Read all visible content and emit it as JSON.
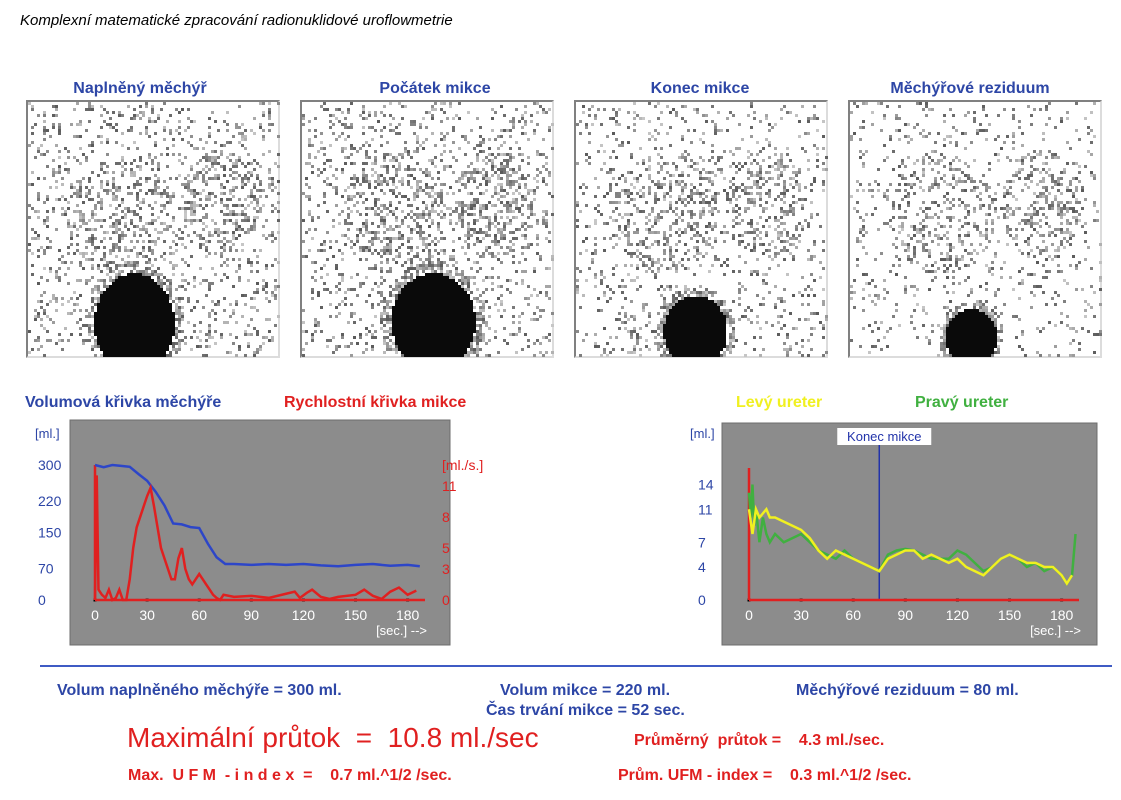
{
  "title": "Komplexní matematické zpracování radionuklidové uroflowmetrie",
  "scans": [
    {
      "label": "Naplněný měchýř"
    },
    {
      "label": "Počátek mikce"
    },
    {
      "label": "Konec mikce"
    },
    {
      "label": "Měchýřové reziduum"
    }
  ],
  "legend": {
    "volume": "Volumová křivka měchýře",
    "rate": "Rychlostní křivka mikce",
    "left_ureter": "Levý  ureter",
    "right_ureter": "Pravý ureter"
  },
  "chart_data": [
    {
      "type": "line",
      "title": "",
      "xlabel": "[sec.] -->",
      "ylabel_left": "[ml.]",
      "ylabel_right": "[ml./s.]",
      "x_ticks": [
        "0",
        "30",
        "60",
        "90",
        "120",
        "150",
        "180"
      ],
      "y_left_ticks": [
        "300",
        "220",
        "150",
        "70",
        "0"
      ],
      "y_right_ticks": [
        "[ml./s.]",
        "11",
        "8",
        "5",
        "3",
        "0"
      ],
      "xlim": [
        0,
        190
      ],
      "ylim_left": [
        0,
        300
      ],
      "ylim_right": [
        0,
        13
      ],
      "colors": {
        "volume": "#2d46c8",
        "rate": "#e02020",
        "plot_bg": "#8c8c8c"
      },
      "series": [
        {
          "name": "Volumová křivka měchýře",
          "axis": "left",
          "x": [
            0,
            5,
            10,
            15,
            20,
            25,
            30,
            35,
            40,
            45,
            50,
            55,
            60,
            65,
            70,
            75,
            80,
            90,
            100,
            110,
            120,
            130,
            140,
            150,
            160,
            170,
            180,
            187
          ],
          "y": [
            300,
            295,
            300,
            298,
            296,
            280,
            265,
            240,
            210,
            170,
            168,
            162,
            160,
            125,
            95,
            80,
            80,
            78,
            80,
            78,
            80,
            77,
            75,
            78,
            80,
            76,
            78,
            75
          ]
        },
        {
          "name": "Rychlostní křivka mikce",
          "axis": "right",
          "x": [
            0,
            1,
            2,
            4,
            6,
            8,
            10,
            12,
            14,
            16,
            18,
            20,
            22,
            24,
            26,
            28,
            30,
            32,
            34,
            36,
            38,
            40,
            42,
            44,
            46,
            48,
            50,
            52,
            54,
            56,
            58,
            60,
            62,
            64,
            66,
            68,
            70,
            72,
            74,
            80,
            90,
            100,
            110,
            115,
            118,
            122,
            125,
            130,
            135,
            140,
            150,
            155,
            160,
            165,
            170,
            175,
            180,
            185
          ],
          "y": [
            0,
            12,
            1,
            0.5,
            0.2,
            1,
            0,
            0.2,
            1,
            0,
            0,
            2,
            5,
            7,
            8,
            9,
            10,
            10.8,
            9,
            7,
            5,
            4,
            3,
            2,
            2,
            4,
            5,
            3,
            2,
            1.5,
            2,
            2.5,
            2,
            1.5,
            1,
            0.5,
            0.2,
            0,
            0.5,
            0.3,
            0.4,
            0.2,
            0.6,
            0.8,
            0.2,
            0.7,
            1,
            0.3,
            0.1,
            0.3,
            0.5,
            1,
            0.4,
            0.1,
            0.8,
            1.2,
            0.5,
            0.9
          ]
        }
      ]
    },
    {
      "type": "line",
      "title": "",
      "ylabel": "[ml.]",
      "xlabel": "[sec.] -->",
      "x_ticks": [
        "0",
        "30",
        "60",
        "90",
        "120",
        "150",
        "180"
      ],
      "y_ticks": [
        "14",
        "11",
        "7",
        "4",
        "0"
      ],
      "xlim": [
        0,
        190
      ],
      "ylim": [
        0,
        16
      ],
      "marker": {
        "x": 75,
        "label": "Konec mikce"
      },
      "colors": {
        "left": "#f0f020",
        "right": "#40b040",
        "marker": "#2233aa",
        "plot_bg": "#8c8c8c"
      },
      "series": [
        {
          "name": "Levý  ureter",
          "x": [
            0,
            2,
            4,
            6,
            8,
            10,
            12,
            15,
            20,
            25,
            30,
            35,
            40,
            45,
            50,
            55,
            60,
            65,
            70,
            75,
            80,
            85,
            90,
            95,
            100,
            105,
            110,
            115,
            120,
            125,
            130,
            135,
            140,
            145,
            150,
            155,
            160,
            165,
            170,
            175,
            180,
            183,
            186
          ],
          "y": [
            11,
            8,
            11,
            10,
            10.5,
            11,
            10,
            10,
            9.5,
            9,
            8.5,
            7.5,
            6,
            5,
            6,
            5.5,
            5,
            4.5,
            4,
            3.5,
            5,
            5.5,
            6,
            6,
            5,
            5.5,
            5,
            4.5,
            5,
            4,
            3.5,
            3,
            4,
            5,
            5.5,
            5,
            4.5,
            4.5,
            4,
            4,
            3,
            2,
            3
          ]
        },
        {
          "name": "Pravý ureter",
          "x": [
            0,
            1,
            2,
            3,
            4,
            6,
            8,
            10,
            12,
            15,
            20,
            25,
            30,
            35,
            40,
            45,
            50,
            55,
            60,
            65,
            70,
            75,
            80,
            85,
            90,
            95,
            100,
            105,
            110,
            115,
            120,
            125,
            130,
            135,
            140,
            145,
            150,
            155,
            160,
            165,
            170,
            175,
            180,
            183,
            186,
            188
          ],
          "y": [
            13,
            10,
            14,
            9,
            11,
            7,
            10,
            8,
            7,
            8,
            7,
            7.5,
            8,
            7,
            6,
            5.5,
            5,
            6,
            5,
            4.5,
            4,
            3.5,
            5.5,
            6,
            6.2,
            6,
            5.5,
            5,
            5,
            5,
            6,
            5.5,
            4.5,
            3.5,
            4,
            5,
            5.5,
            5,
            4,
            4.5,
            3.5,
            4,
            3,
            2,
            3,
            8
          ]
        }
      ]
    }
  ],
  "stats": {
    "volume_full": "Volum naplněného měchýře  = 300 ml.",
    "volume_mikce": "Volum mikce  = 220 ml.",
    "residuum": "Měchýřové reziduum  = 80 ml.",
    "duration": "Čas trvání mikce  = 52 sec.",
    "max_flow": "Maximální průtok  =  10.8 ml./sec",
    "avg_flow": "Průměrný  průtok =    4.3 ml./sec.",
    "max_ufm": "Max.  U F M  - i n d e x  =    0.7 ml.^1/2 /sec.",
    "avg_ufm": "Prům. UFM - index =    0.3 ml.^1/2 /sec."
  }
}
